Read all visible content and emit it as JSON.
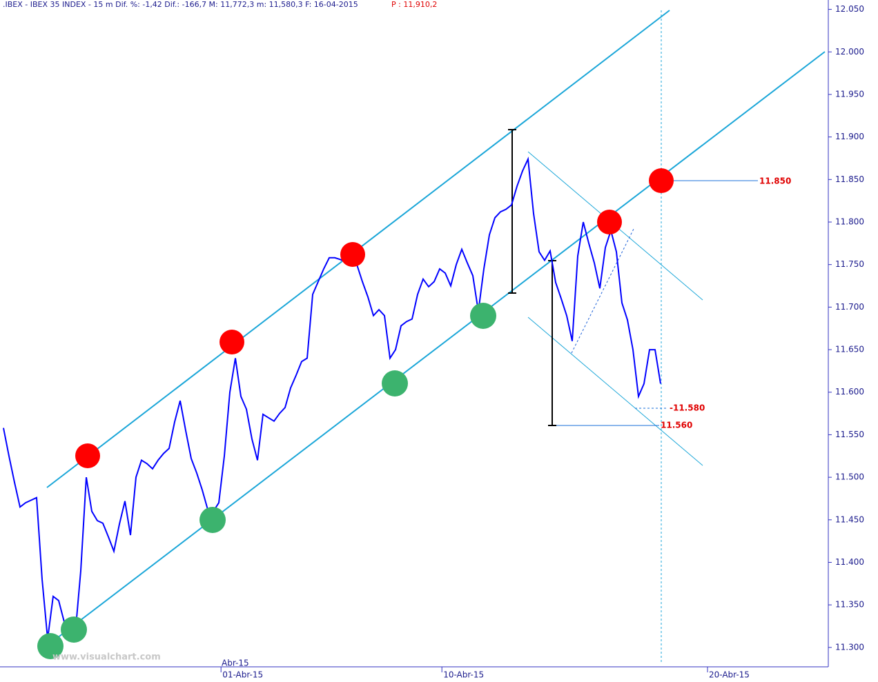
{
  "chart_data": {
    "type": "line",
    "title": ".IBEX - IBEX 35 INDEX -  15 m Dif. %: -1,42 Dif.: -166,7 M: 11,772,3 m: 11,580,3 F: 16-04-2015",
    "subtitle": "P : 11,910,2",
    "watermark": "www.visualchart.com",
    "month_label": "Abr-15",
    "annotations": [
      "11.850",
      "-11.580",
      "11.560"
    ],
    "series": [
      {
        "color": "#0000ff",
        "values": [
          11558,
          11525,
          11494,
          11465,
          11470,
          11473,
          11476,
          11380,
          11310,
          11360,
          11355,
          11330,
          11322,
          11316,
          11390,
          11500,
          11460,
          11449,
          11446,
          11430,
          11413,
          11445,
          11472,
          11432,
          11500,
          11520,
          11516,
          11510,
          11520,
          11528,
          11534,
          11565,
          11590,
          11555,
          11522,
          11505,
          11485,
          11462,
          11460,
          11470,
          11525,
          11600,
          11640,
          11595,
          11580,
          11545,
          11520,
          11574,
          11570,
          11566,
          11575,
          11582,
          11605,
          11620,
          11636,
          11640,
          11715,
          11730,
          11745,
          11758,
          11758,
          11756,
          11753,
          11753,
          11750,
          11730,
          11712,
          11690,
          11697,
          11690,
          11640,
          11650,
          11678,
          11683,
          11686,
          11715,
          11733,
          11724,
          11730,
          11745,
          11740,
          11725,
          11750,
          11768,
          11752,
          11737,
          11695,
          11745,
          11785,
          11805,
          11812,
          11815,
          11820,
          11842,
          11860,
          11874,
          11810,
          11765,
          11755,
          11766,
          11729,
          11710,
          11690,
          11660,
          11760,
          11800,
          11775,
          11752,
          11722,
          11770,
          11790,
          11765,
          11705,
          11685,
          11650,
          11595,
          11610,
          11650,
          11650,
          11610
        ]
      }
    ],
    "xlim": [
      -0.625,
      149.375
    ],
    "xticks": [
      {
        "value": 39.4,
        "label": "01-Abr-15"
      },
      {
        "value": 79.4,
        "label": "10-Abr-15"
      },
      {
        "value": 127.5,
        "label": "20-Abr-15"
      }
    ],
    "ylim": [
      11278,
      12061
    ],
    "yticks": [
      {
        "value": 11300,
        "label": "11.300"
      },
      {
        "value": 11350,
        "label": "11.350"
      },
      {
        "value": 11400,
        "label": "11.400"
      },
      {
        "value": 11450,
        "label": "11.450"
      },
      {
        "value": 11500,
        "label": "11.500"
      },
      {
        "value": 11550,
        "label": "11.550"
      },
      {
        "value": 11600,
        "label": "11.600"
      },
      {
        "value": 11650,
        "label": "11.650"
      },
      {
        "value": 11700,
        "label": "11.700"
      },
      {
        "value": 11750,
        "label": "11.750"
      },
      {
        "value": 11800,
        "label": "11.800"
      },
      {
        "value": 11850,
        "label": "11.850"
      },
      {
        "value": 11900,
        "label": "11.900"
      },
      {
        "value": 11950,
        "label": "11.950"
      },
      {
        "value": 12000,
        "label": "12.000"
      },
      {
        "value": 12050,
        "label": "12.050"
      }
    ]
  }
}
